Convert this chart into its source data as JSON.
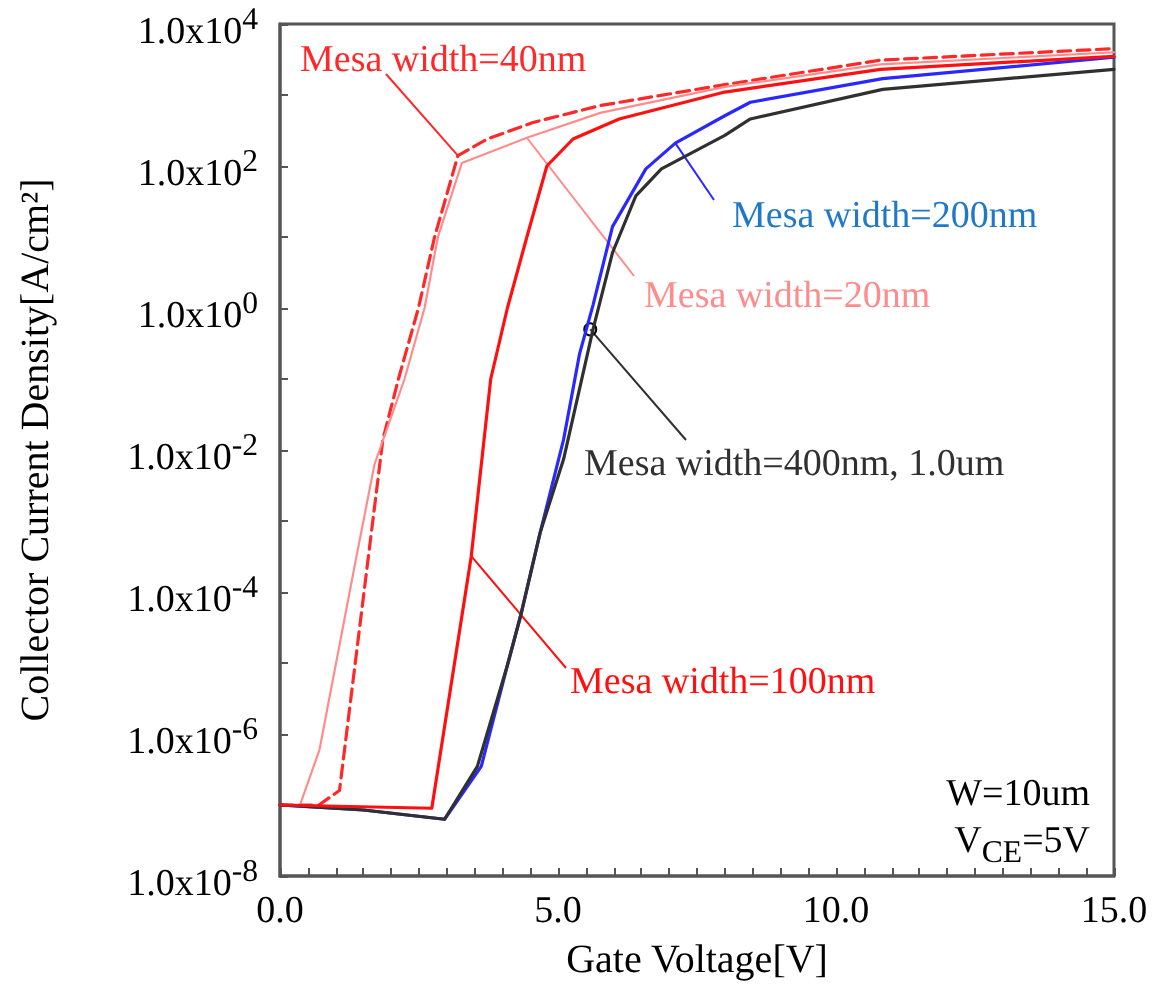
{
  "chart_data": {
    "type": "line",
    "xlabel": "Gate Voltage[V]",
    "ylabel": "Collector Current Density[A/cm²]",
    "log": "y",
    "grid": false,
    "marker": "none",
    "xlim": [
      0,
      15
    ],
    "ylim": [
      1e-08,
      10000
    ],
    "xticks": [
      {
        "value": 0,
        "label": "0.0"
      },
      {
        "value": 0.5,
        "label": null
      },
      {
        "value": 1,
        "label": null
      },
      {
        "value": 1.5,
        "label": null
      },
      {
        "value": 2,
        "label": null
      },
      {
        "value": 2.5,
        "label": null
      },
      {
        "value": 3,
        "label": null
      },
      {
        "value": 3.5,
        "label": null
      },
      {
        "value": 4,
        "label": null
      },
      {
        "value": 4.5,
        "label": null
      },
      {
        "value": 5,
        "label": "5.0"
      },
      {
        "value": 5.5,
        "label": null
      },
      {
        "value": 6,
        "label": null
      },
      {
        "value": 6.5,
        "label": null
      },
      {
        "value": 7,
        "label": null
      },
      {
        "value": 7.5,
        "label": null
      },
      {
        "value": 8,
        "label": null
      },
      {
        "value": 8.5,
        "label": null
      },
      {
        "value": 9,
        "label": null
      },
      {
        "value": 9.5,
        "label": null
      },
      {
        "value": 10,
        "label": "10.0"
      },
      {
        "value": 10.5,
        "label": null
      },
      {
        "value": 11,
        "label": null
      },
      {
        "value": 11.5,
        "label": null
      },
      {
        "value": 12,
        "label": null
      },
      {
        "value": 12.5,
        "label": null
      },
      {
        "value": 13,
        "label": null
      },
      {
        "value": 13.5,
        "label": null
      },
      {
        "value": 14,
        "label": null
      },
      {
        "value": 14.5,
        "label": null
      },
      {
        "value": 15,
        "label": "15.0"
      }
    ],
    "yticks": [
      {
        "value": 1e-08,
        "label": "1.0x10$^{-8}$"
      },
      {
        "value": 1e-07,
        "label": null
      },
      {
        "value": 1e-06,
        "label": "1.0x10$^{-6}$"
      },
      {
        "value": 1e-05,
        "label": null
      },
      {
        "value": 0.0001,
        "label": "1.0x10$^{-4}$"
      },
      {
        "value": 0.001,
        "label": null
      },
      {
        "value": 0.01,
        "label": "1.0x10$^{-2}$"
      },
      {
        "value": 0.1,
        "label": null
      },
      {
        "value": 1,
        "label": "1.0x10$^{0}$"
      },
      {
        "value": 10,
        "label": null
      },
      {
        "value": 100,
        "label": "1.0x10$^{2}$"
      },
      {
        "value": 1000,
        "label": null
      },
      {
        "value": 10000,
        "label": "1.0x10$^{4}$"
      }
    ],
    "series": [
      {
        "color": "#ff2828",
        "line_style": "dashed",
        "x": [
          0,
          0.7,
          1.07,
          1.85,
          2.13,
          2.49,
          2.78,
          3.2,
          3.73,
          4.55,
          5.76,
          8.0,
          10.8,
          15
        ],
        "values": [
          1e-07,
          1e-07,
          1.6e-07,
          0.014,
          0.1,
          1,
          10,
          140,
          240,
          410,
          710,
          1400,
          3100,
          4500
        ]
      },
      {
        "color": "#ff8c8c",
        "line_style": "solid",
        "x": [
          0,
          0.36,
          0.71,
          1.35,
          1.7,
          2.24,
          2.6,
          2.84,
          3.27,
          4.44,
          5.76,
          8.0,
          10.8,
          15
        ],
        "values": [
          1e-07,
          1e-07,
          6e-07,
          0.00025,
          0.0063,
          0.1,
          1,
          10,
          110,
          250,
          560,
          1300,
          2700,
          4000
        ]
      },
      {
        "color": "#2828ff",
        "line_style": "solid",
        "x": [
          0,
          1.5,
          2.96,
          3.62,
          4.09,
          4.33,
          4.68,
          5.1,
          5.39,
          5.63,
          5.98,
          6.58,
          7.11,
          8.0,
          8.46,
          10.84,
          15
        ],
        "values": [
          1e-07,
          8.5e-08,
          6.3e-08,
          3.5e-07,
          9.3e-06,
          4.7e-05,
          0.00069,
          0.014,
          0.23,
          1.1,
          14,
          91,
          210,
          510,
          790,
          1700,
          3400
        ]
      },
      {
        "color": "#303030",
        "line_style": "solid",
        "x": [
          0,
          1.5,
          2.96,
          3.55,
          4.09,
          4.33,
          4.68,
          5.1,
          5.63,
          5.98,
          6.4,
          6.86,
          8.0,
          8.46,
          10.84,
          15
        ],
        "values": [
          1e-07,
          8.5e-08,
          6.3e-08,
          3.5e-07,
          9.3e-06,
          4.7e-05,
          0.00069,
          0.0074,
          0.5,
          6,
          38,
          91,
          270,
          460,
          1200,
          2300
        ]
      },
      {
        "color": "#ff1010",
        "line_style": "solid",
        "x": [
          0,
          2.73,
          3.44,
          3.67,
          3.79,
          4.09,
          4.44,
          4.8,
          5.27,
          6.1,
          8.0,
          10.8,
          15
        ],
        "values": [
          1e-07,
          9e-08,
          0.00032,
          0.014,
          0.1,
          1,
          10,
          100,
          240,
          460,
          1100,
          2300,
          3500
        ]
      }
    ],
    "annotations": [
      {
        "text": "Mesa width=40nm",
        "x": 3.2,
        "y": 140
      },
      {
        "text": "Mesa width=20nm",
        "x": 4.44,
        "y": 250
      },
      {
        "text": "Mesa width=200nm",
        "x": 7.11,
        "y": 210
      },
      {
        "text": "Mesa width=400nm, 1.0um",
        "x": 5.58,
        "y": 0.5
      },
      {
        "text": "Mesa width=100nm",
        "x": 3.44,
        "y": 0.00032
      },
      "W=10um",
      "V$_{CE}$=5V"
    ]
  }
}
